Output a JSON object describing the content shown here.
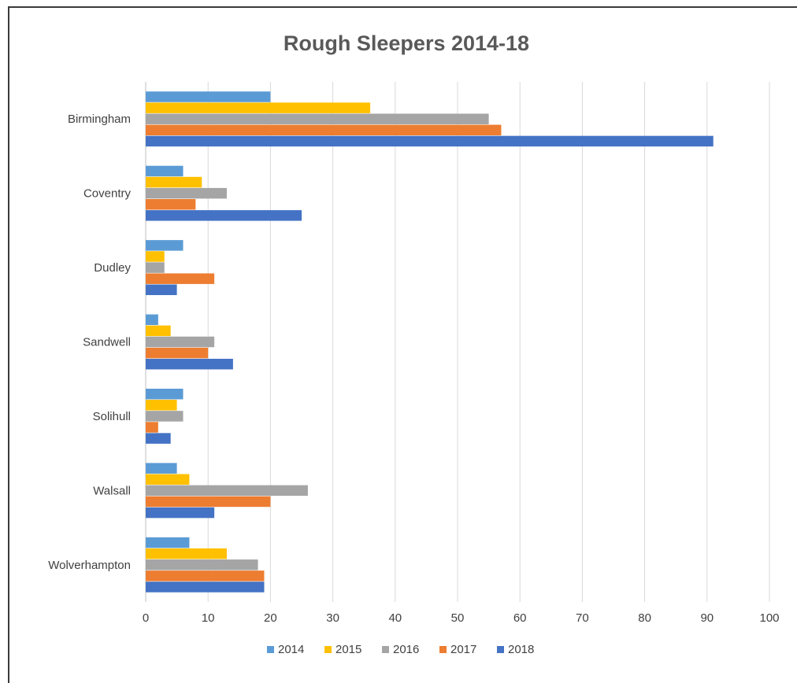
{
  "chart_data": {
    "type": "bar",
    "orientation": "horizontal",
    "title": "Rough Sleepers 2014-18",
    "categories": [
      "Birmingham",
      "Coventry",
      "Dudley",
      "Sandwell",
      "Solihull",
      "Walsall",
      "Wolverhampton"
    ],
    "series": [
      {
        "name": "2014",
        "color": "#5B9BD5",
        "values": [
          20,
          6,
          6,
          2,
          6,
          5,
          7
        ]
      },
      {
        "name": "2015",
        "color": "#FFC000",
        "values": [
          36,
          9,
          3,
          4,
          5,
          7,
          13
        ]
      },
      {
        "name": "2016",
        "color": "#A5A5A5",
        "values": [
          55,
          13,
          3,
          11,
          6,
          26,
          18
        ]
      },
      {
        "name": "2017",
        "color": "#ED7D31",
        "values": [
          57,
          8,
          11,
          10,
          2,
          20,
          19
        ]
      },
      {
        "name": "2018",
        "color": "#4472C4",
        "values": [
          91,
          25,
          5,
          14,
          4,
          11,
          19
        ]
      }
    ],
    "xlim": [
      0,
      100
    ],
    "ticks": [
      "0",
      "10",
      "20",
      "30",
      "40",
      "50",
      "60",
      "70",
      "80",
      "90",
      "100"
    ],
    "grid": true,
    "legend": "bottom"
  }
}
